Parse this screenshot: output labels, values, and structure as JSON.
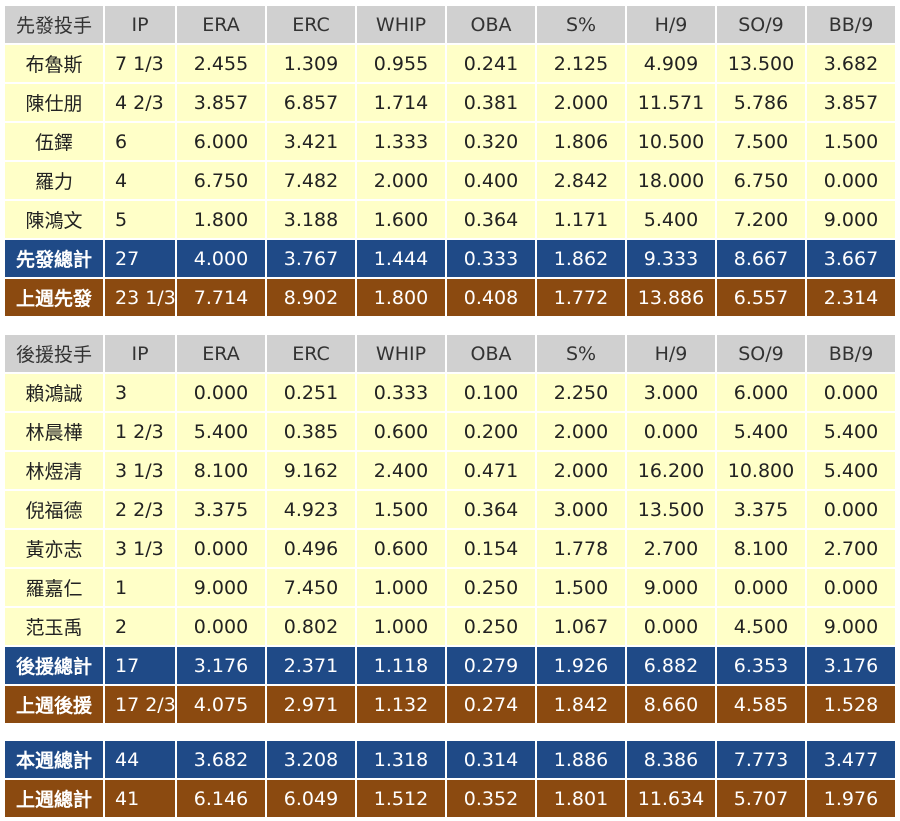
{
  "columns": [
    "IP",
    "ERA",
    "ERC",
    "WHIP",
    "OBA",
    "S%",
    "H/9",
    "SO/9",
    "BB/9"
  ],
  "starters": {
    "header": "先發投手",
    "rows": [
      {
        "name": "布魯斯",
        "ip": "7 1/3",
        "era": "2.455",
        "erc": "1.309",
        "whip": "0.955",
        "oba": "0.241",
        "s": "2.125",
        "h9": "4.909",
        "so9": "13.500",
        "bb9": "3.682"
      },
      {
        "name": "陳仕朋",
        "ip": "4 2/3",
        "era": "3.857",
        "erc": "6.857",
        "whip": "1.714",
        "oba": "0.381",
        "s": "2.000",
        "h9": "11.571",
        "so9": "5.786",
        "bb9": "3.857"
      },
      {
        "name": "伍鐸",
        "ip": "6",
        "era": "6.000",
        "erc": "3.421",
        "whip": "1.333",
        "oba": "0.320",
        "s": "1.806",
        "h9": "10.500",
        "so9": "7.500",
        "bb9": "1.500"
      },
      {
        "name": "羅力",
        "ip": "4",
        "era": "6.750",
        "erc": "7.482",
        "whip": "2.000",
        "oba": "0.400",
        "s": "2.842",
        "h9": "18.000",
        "so9": "6.750",
        "bb9": "0.000"
      },
      {
        "name": "陳鴻文",
        "ip": "5",
        "era": "1.800",
        "erc": "3.188",
        "whip": "1.600",
        "oba": "0.364",
        "s": "1.171",
        "h9": "5.400",
        "so9": "7.200",
        "bb9": "9.000"
      }
    ],
    "total": {
      "name": "先發總計",
      "ip": "27",
      "era": "4.000",
      "erc": "3.767",
      "whip": "1.444",
      "oba": "0.333",
      "s": "1.862",
      "h9": "9.333",
      "so9": "8.667",
      "bb9": "3.667"
    },
    "prev": {
      "name": "上週先發",
      "ip": "23 1/3",
      "era": "7.714",
      "erc": "8.902",
      "whip": "1.800",
      "oba": "0.408",
      "s": "1.772",
      "h9": "13.886",
      "so9": "6.557",
      "bb9": "2.314"
    }
  },
  "relievers": {
    "header": "後援投手",
    "rows": [
      {
        "name": "賴鴻誠",
        "ip": "3",
        "era": "0.000",
        "erc": "0.251",
        "whip": "0.333",
        "oba": "0.100",
        "s": "2.250",
        "h9": "3.000",
        "so9": "6.000",
        "bb9": "0.000"
      },
      {
        "name": "林晨樺",
        "ip": "1 2/3",
        "era": "5.400",
        "erc": "0.385",
        "whip": "0.600",
        "oba": "0.200",
        "s": "2.000",
        "h9": "0.000",
        "so9": "5.400",
        "bb9": "5.400"
      },
      {
        "name": "林煜清",
        "ip": "3 1/3",
        "era": "8.100",
        "erc": "9.162",
        "whip": "2.400",
        "oba": "0.471",
        "s": "2.000",
        "h9": "16.200",
        "so9": "10.800",
        "bb9": "5.400"
      },
      {
        "name": "倪福德",
        "ip": "2 2/3",
        "era": "3.375",
        "erc": "4.923",
        "whip": "1.500",
        "oba": "0.364",
        "s": "3.000",
        "h9": "13.500",
        "so9": "3.375",
        "bb9": "0.000"
      },
      {
        "name": "黃亦志",
        "ip": "3 1/3",
        "era": "0.000",
        "erc": "0.496",
        "whip": "0.600",
        "oba": "0.154",
        "s": "1.778",
        "h9": "2.700",
        "so9": "8.100",
        "bb9": "2.700"
      },
      {
        "name": "羅嘉仁",
        "ip": "1",
        "era": "9.000",
        "erc": "7.450",
        "whip": "1.000",
        "oba": "0.250",
        "s": "1.500",
        "h9": "9.000",
        "so9": "0.000",
        "bb9": "0.000"
      },
      {
        "name": "范玉禹",
        "ip": "2",
        "era": "0.000",
        "erc": "0.802",
        "whip": "1.000",
        "oba": "0.250",
        "s": "1.067",
        "h9": "0.000",
        "so9": "4.500",
        "bb9": "9.000"
      }
    ],
    "total": {
      "name": "後援總計",
      "ip": "17",
      "era": "3.176",
      "erc": "2.371",
      "whip": "1.118",
      "oba": "0.279",
      "s": "1.926",
      "h9": "6.882",
      "so9": "6.353",
      "bb9": "3.176"
    },
    "prev": {
      "name": "上週後援",
      "ip": "17 2/3",
      "era": "4.075",
      "erc": "2.971",
      "whip": "1.132",
      "oba": "0.274",
      "s": "1.842",
      "h9": "8.660",
      "so9": "4.585",
      "bb9": "1.528"
    }
  },
  "overall": {
    "total": {
      "name": "本週總計",
      "ip": "44",
      "era": "3.682",
      "erc": "3.208",
      "whip": "1.318",
      "oba": "0.314",
      "s": "1.886",
      "h9": "8.386",
      "so9": "7.773",
      "bb9": "3.477"
    },
    "prev": {
      "name": "上週總計",
      "ip": "41",
      "era": "6.146",
      "erc": "6.049",
      "whip": "1.512",
      "oba": "0.352",
      "s": "1.801",
      "h9": "11.634",
      "so9": "5.707",
      "bb9": "1.976"
    }
  },
  "colors": {
    "header": "#d0d0d0",
    "row": "#ffffc8",
    "total": "#1f4a87",
    "prev_week": "#8b4a10"
  }
}
